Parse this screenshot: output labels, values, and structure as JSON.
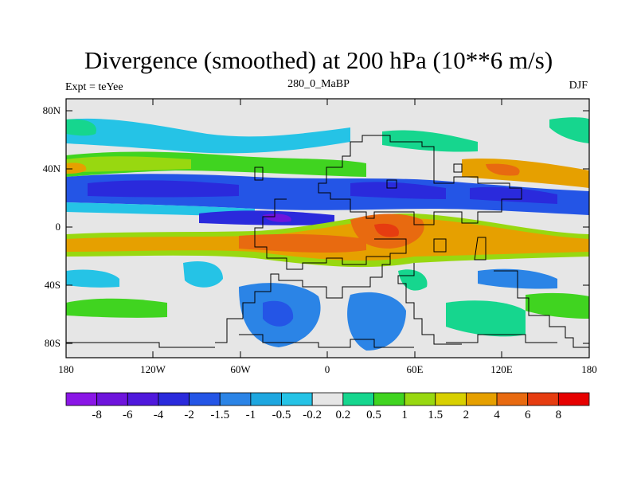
{
  "title": "Divergence (smoothed) at 200 hPa (10**6 m/s)",
  "subtitle_left": "Expt = teYee",
  "subtitle_center": "280_0_MaBP",
  "subtitle_right": "DJF",
  "lat_ticks": [
    "80N",
    "40N",
    "0",
    "40S",
    "80S"
  ],
  "lon_ticks": [
    "180",
    "120W",
    "60W",
    "0",
    "60E",
    "120E",
    "180"
  ],
  "colorbar": {
    "labels": [
      "-8",
      "-6",
      "-4",
      "-2",
      "-1.5",
      "-1",
      "-0.5",
      "-0.2",
      "0.2",
      "0.5",
      "1",
      "1.5",
      "2",
      "4",
      "6",
      "8"
    ],
    "colors": [
      "#8a16e6",
      "#6e14dc",
      "#4f18dc",
      "#2a2adc",
      "#2455e6",
      "#2b84e6",
      "#1ea7e0",
      "#25c3e6",
      "#e6e6e6",
      "#16d68e",
      "#40d420",
      "#98d810",
      "#d8d000",
      "#e6a000",
      "#e86a10",
      "#e63c10",
      "#e60000"
    ]
  }
}
